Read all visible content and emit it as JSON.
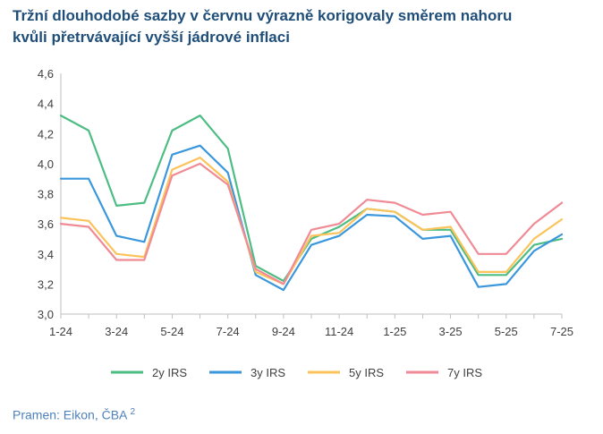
{
  "title": {
    "line1": "Tržní dlouhodobé sazby v červnu výrazně korigovaly směrem nahoru",
    "line2": "kvůli přetrvávající vyšší jádrové inflaci"
  },
  "source": {
    "text": "Pramen: Eikon, ČBA",
    "note": "2"
  },
  "chart_data": {
    "type": "line",
    "title": "Tržní dlouhodobé sazby v červnu výrazně korigovaly směrem nahoru kvůli přetrvávající vyšší jádrové inflaci",
    "xlabel": "",
    "ylabel": "",
    "ylim": [
      3.0,
      4.6
    ],
    "yticks": [
      "3,0",
      "3,2",
      "3,4",
      "3,6",
      "3,8",
      "4,0",
      "4,2",
      "4,4",
      "4,6"
    ],
    "x_tick_labels": [
      "1-24",
      "3-24",
      "5-24",
      "7-24",
      "9-24",
      "11-24",
      "1-25",
      "3-25",
      "5-25",
      "7-25"
    ],
    "x": [
      "2024-01",
      "2024-02",
      "2024-03",
      "2024-04",
      "2024-05",
      "2024-06",
      "2024-07",
      "2024-08",
      "2024-09",
      "2024-10",
      "2024-11",
      "2024-12",
      "2025-01",
      "2025-02",
      "2025-03",
      "2025-04",
      "2025-05",
      "2025-06",
      "2025-07"
    ],
    "grid": false,
    "legend_position": "bottom",
    "series": [
      {
        "name": "2y IRS",
        "color": "#4dbd83",
        "values": [
          4.32,
          4.22,
          3.72,
          3.74,
          4.22,
          4.32,
          4.1,
          3.32,
          3.22,
          3.5,
          3.58,
          3.7,
          3.68,
          3.56,
          3.56,
          3.26,
          3.26,
          3.46,
          3.5
        ]
      },
      {
        "name": "3y IRS",
        "color": "#3b97dc",
        "values": [
          3.9,
          3.9,
          3.52,
          3.48,
          4.06,
          4.12,
          3.94,
          3.26,
          3.16,
          3.46,
          3.52,
          3.66,
          3.65,
          3.5,
          3.52,
          3.18,
          3.2,
          3.42,
          3.53
        ]
      },
      {
        "name": "5y IRS",
        "color": "#fbc35a",
        "values": [
          3.64,
          3.62,
          3.4,
          3.38,
          3.96,
          4.04,
          3.88,
          3.28,
          3.2,
          3.52,
          3.54,
          3.7,
          3.68,
          3.56,
          3.58,
          3.28,
          3.28,
          3.5,
          3.63
        ]
      },
      {
        "name": "7y IRS",
        "color": "#f08a94",
        "values": [
          3.6,
          3.58,
          3.36,
          3.36,
          3.92,
          4.0,
          3.86,
          3.3,
          3.2,
          3.56,
          3.6,
          3.76,
          3.74,
          3.66,
          3.68,
          3.4,
          3.4,
          3.6,
          3.74
        ]
      }
    ]
  }
}
